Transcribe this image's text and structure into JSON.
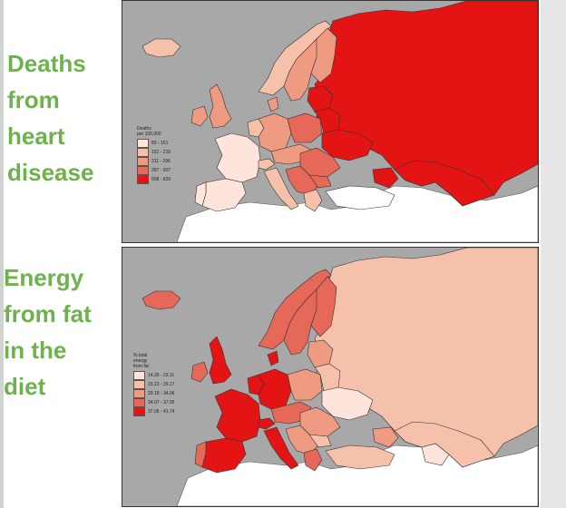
{
  "labels": {
    "top": "Deaths\nfrom\nheart\ndisease",
    "bottom": "Energy\nfrom fat\nin the\ndiet"
  },
  "maps": {
    "top": {
      "legend_title": "Deaths\nper 100,000",
      "legend": [
        {
          "range": "83 - 151",
          "color": "#fde5dc"
        },
        {
          "range": "152 - 210",
          "color": "#f6c1ab"
        },
        {
          "range": "211 - 296",
          "color": "#ef9b82"
        },
        {
          "range": "297 - 507",
          "color": "#e66858"
        },
        {
          "range": "508 - 839",
          "color": "#e41414"
        }
      ]
    },
    "bottom": {
      "legend_title": "% total\nenergy\nfrom fat",
      "legend": [
        {
          "range": "14.26 - 23.11",
          "color": "#fde5dc"
        },
        {
          "range": "23.12 - 29.17",
          "color": "#f6c1ab"
        },
        {
          "range": "29.18 - 34.06",
          "color": "#ef9b82"
        },
        {
          "range": "34.07 - 37.05",
          "color": "#e66858"
        },
        {
          "range": "37.06 - 41.74",
          "color": "#e41414"
        }
      ]
    }
  },
  "colors": {
    "label_green": "#6db24c",
    "sea": "#a8a8a8",
    "non_data_land": "#ffffff",
    "border": "#333333"
  }
}
